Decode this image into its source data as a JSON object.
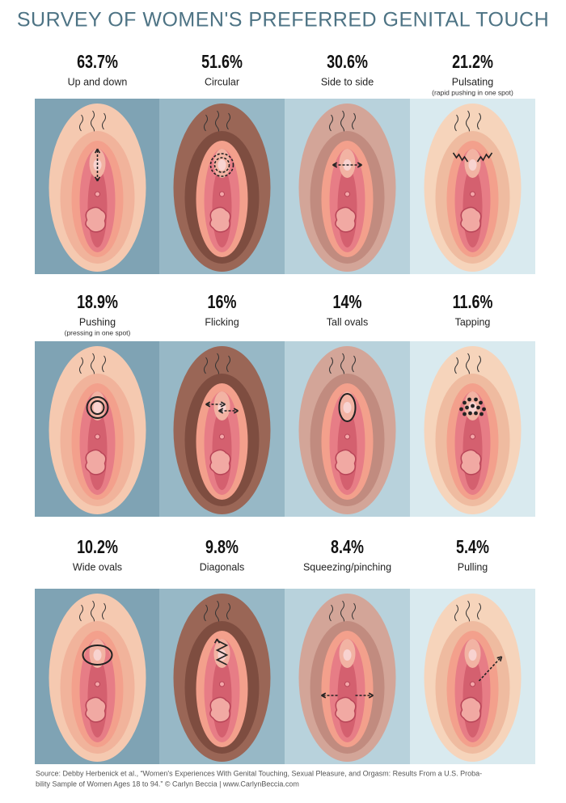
{
  "title": "SURVEY OF WOMEN'S PREFERRED GENITAL TOUCH",
  "items": [
    {
      "percent": "63.7%",
      "label": "Up and down"
    },
    {
      "percent": "51.6%",
      "label": "Circular"
    },
    {
      "percent": "30.6%",
      "label": "Side to side"
    },
    {
      "percent": "21.2%",
      "label": "Pulsating",
      "note": "(rapid pushing in one spot)"
    },
    {
      "percent": "18.9%",
      "label": "Pushing",
      "note": "(pressing in one spot)"
    },
    {
      "percent": "16%",
      "label": "Flicking"
    },
    {
      "percent": "14%",
      "label": "Tall ovals"
    },
    {
      "percent": "11.6%",
      "label": "Tapping"
    },
    {
      "percent": "10.2%",
      "label": "Wide ovals"
    },
    {
      "percent": "9.8%",
      "label": "Diagonals"
    },
    {
      "percent": "8.4%",
      "label": "Squeezing/pinching"
    },
    {
      "percent": "5.4%",
      "label": "Pulling"
    }
  ],
  "source": [
    "Source: Debby Herbenick et al., “Women's Experiences With Genital Touching, Sexual Pleasure, and Orgasm: Results From a U.S. Proba-",
    "bility Sample of Women Ages 18 to 94.” © Carlyn Beccia | www.CarlynBeccia.com"
  ]
}
